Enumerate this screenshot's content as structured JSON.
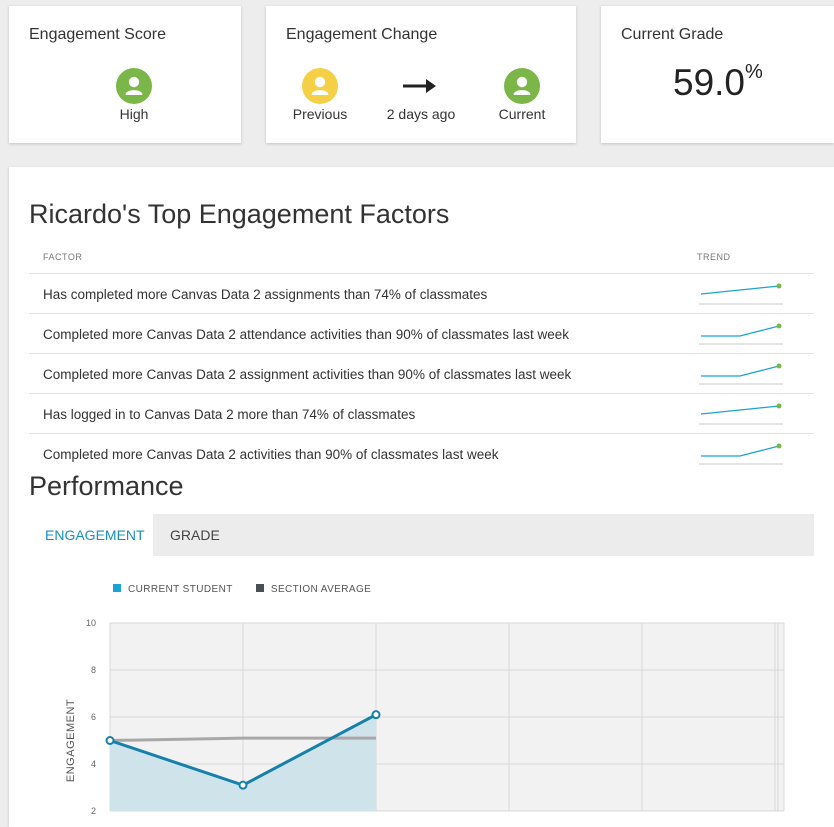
{
  "engagement_score": {
    "title": "Engagement Score",
    "level": "High",
    "icon": "user-icon",
    "color": "#7ab648"
  },
  "engagement_change": {
    "title": "Engagement Change",
    "previous_label": "Previous",
    "previous_color": "#f5cf45",
    "arrow_icon": "arrow-right-icon",
    "interval_label": "2 days ago",
    "current_label": "Current",
    "current_color": "#7ab648"
  },
  "current_grade": {
    "title": "Current Grade",
    "value": "59.0",
    "unit": "%"
  },
  "factors": {
    "title": "Ricardo's Top Engagement Factors",
    "col_factor": "FACTOR",
    "col_trend": "TREND",
    "rows": [
      {
        "text": "Has completed more Canvas Data 2 assignments than 74% of classmates",
        "trend": [
          3,
          5,
          7
        ]
      },
      {
        "text": "Completed more Canvas Data 2 attendance activities than 90% of classmates last week",
        "trend": [
          2,
          2,
          7
        ]
      },
      {
        "text": "Completed more Canvas Data 2 assignment activities than 90% of classmates last week",
        "trend": [
          2,
          2,
          7
        ]
      },
      {
        "text": "Has logged in to Canvas Data 2 more than 74% of classmates",
        "trend": [
          3,
          5,
          7
        ]
      },
      {
        "text": "Completed more Canvas Data 2 activities than 90% of classmates last week",
        "trend": [
          2,
          2,
          7
        ]
      }
    ]
  },
  "performance": {
    "title": "Performance",
    "tabs": [
      {
        "label": "ENGAGEMENT",
        "active": true
      },
      {
        "label": "GRADE",
        "active": false
      }
    ]
  },
  "chart_data": {
    "type": "line",
    "ylabel": "ENGAGEMENT",
    "ylim": [
      2,
      10
    ],
    "y_ticks": [
      "2",
      "4",
      "6",
      "8",
      "10"
    ],
    "grid": true,
    "legend_placement": "top-left",
    "series": [
      {
        "name": "CURRENT STUDENT",
        "color": "#1a8fbe",
        "values": [
          5.0,
          3.1,
          6.1
        ]
      },
      {
        "name": "SECTION AVERAGE",
        "color": "#555555",
        "values": [
          5.0,
          5.1,
          5.1
        ]
      }
    ]
  }
}
